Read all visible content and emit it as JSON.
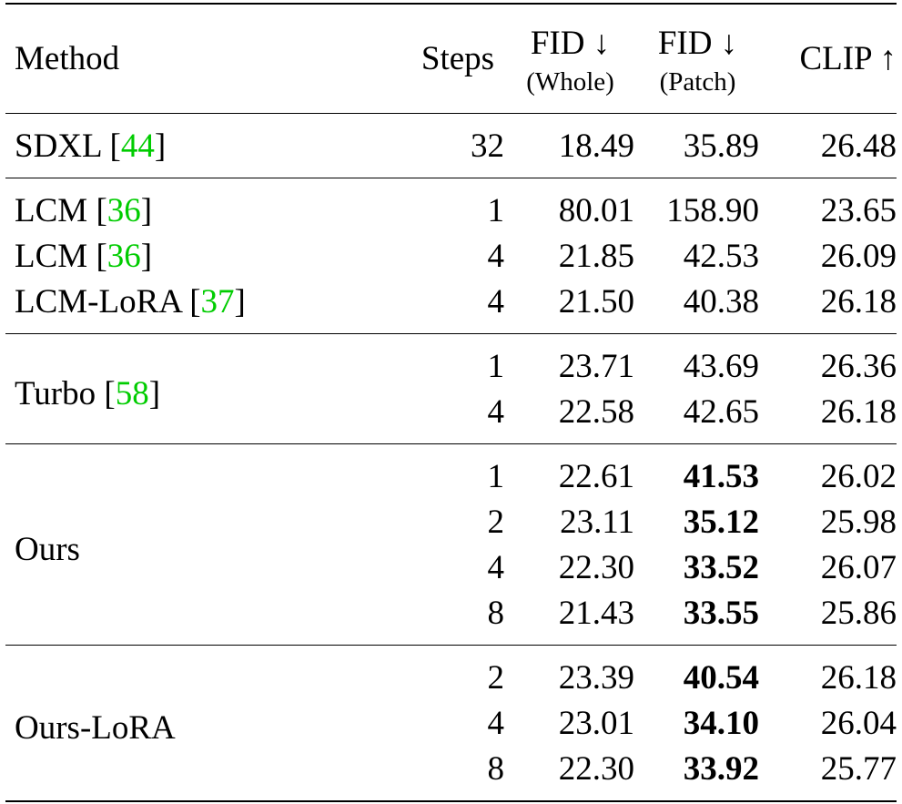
{
  "header": {
    "method": "Method",
    "steps": "Steps",
    "fid_whole_main": "FID ↓",
    "fid_whole_sub": "(Whole)",
    "fid_patch_main": "FID ↓",
    "fid_patch_sub": "(Patch)",
    "clip": "CLIP ↑"
  },
  "groups": [
    {
      "method": "SDXL",
      "ref": "44",
      "rows": [
        {
          "steps": "32",
          "fid_whole": "18.49",
          "fid_patch": "35.89",
          "clip": "26.48"
        }
      ]
    },
    {
      "rows": [
        {
          "method": "LCM",
          "ref": "36",
          "steps": "1",
          "fid_whole": "80.01",
          "fid_patch": "158.90",
          "clip": "23.65"
        },
        {
          "method": "LCM",
          "ref": "36",
          "steps": "4",
          "fid_whole": "21.85",
          "fid_patch": "42.53",
          "clip": "26.09"
        },
        {
          "method": "LCM-LoRA",
          "ref": "37",
          "steps": "4",
          "fid_whole": "21.50",
          "fid_patch": "40.38",
          "clip": "26.18"
        }
      ]
    },
    {
      "method": "Turbo",
      "ref": "58",
      "rows": [
        {
          "steps": "1",
          "fid_whole": "23.71",
          "fid_patch": "43.69",
          "clip": "26.36"
        },
        {
          "steps": "4",
          "fid_whole": "22.58",
          "fid_patch": "42.65",
          "clip": "26.18"
        }
      ]
    },
    {
      "method": "Ours",
      "rows": [
        {
          "steps": "1",
          "fid_whole": "22.61",
          "fid_patch": "41.53",
          "clip": "26.02"
        },
        {
          "steps": "2",
          "fid_whole": "23.11",
          "fid_patch": "35.12",
          "clip": "25.98"
        },
        {
          "steps": "4",
          "fid_whole": "22.30",
          "fid_patch": "33.52",
          "clip": "26.07"
        },
        {
          "steps": "8",
          "fid_whole": "21.43",
          "fid_patch": "33.55",
          "clip": "25.86"
        }
      ]
    },
    {
      "method": "Ours-LoRA",
      "rows": [
        {
          "steps": "2",
          "fid_whole": "23.39",
          "fid_patch": "40.54",
          "clip": "26.18"
        },
        {
          "steps": "4",
          "fid_whole": "23.01",
          "fid_patch": "34.10",
          "clip": "26.04"
        },
        {
          "steps": "8",
          "fid_whole": "22.30",
          "fid_patch": "33.92",
          "clip": "25.77"
        }
      ]
    }
  ]
}
